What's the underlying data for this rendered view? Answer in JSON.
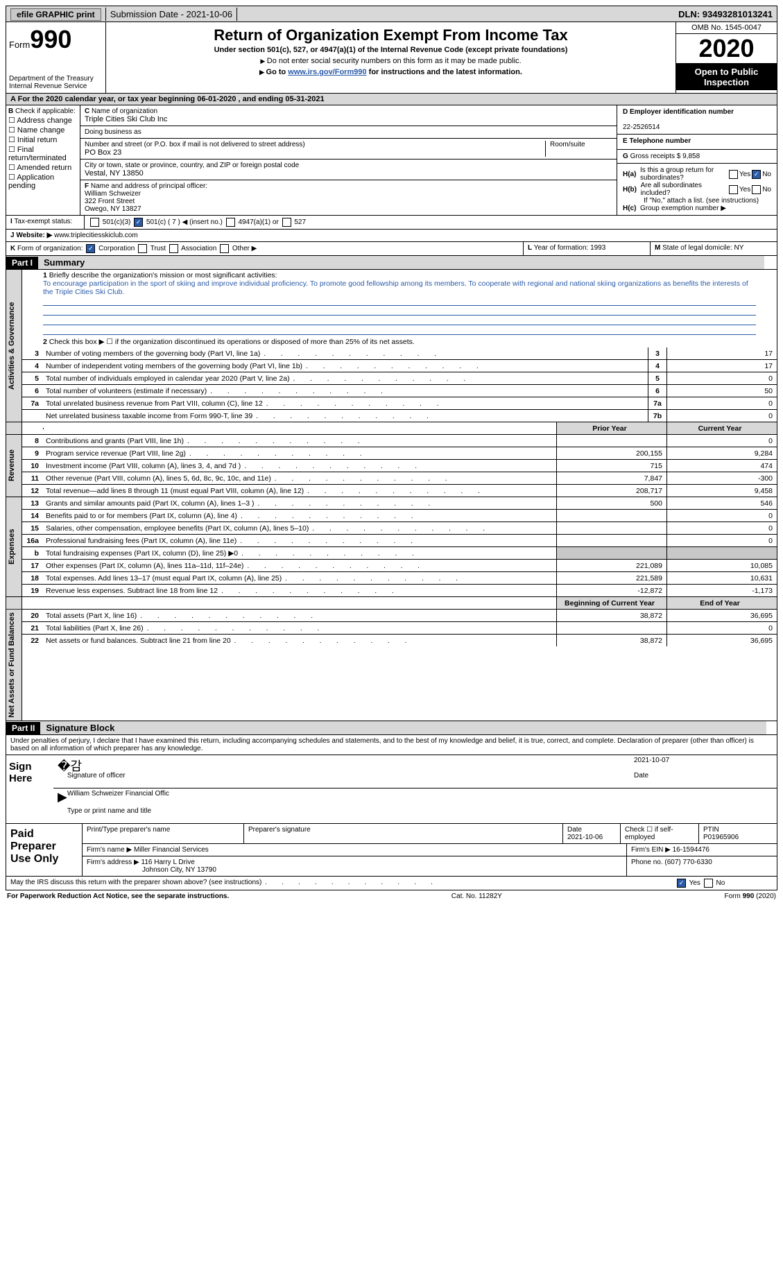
{
  "topbar": {
    "efile": "efile GRAPHIC print",
    "sub_label": "Submission Date - ",
    "sub_date": "2021-10-06",
    "dln_label": "DLN: ",
    "dln": "93493281013241"
  },
  "header": {
    "form_word": "Form",
    "form_num": "990",
    "dept1": "Department of the Treasury",
    "dept2": "Internal Revenue Service",
    "title": "Return of Organization Exempt From Income Tax",
    "sub1": "Under section 501(c), 527, or 4947(a)(1) of the Internal Revenue Code (except private foundations)",
    "sub2": "Do not enter social security numbers on this form as it may be made public.",
    "sub3a": "Go to ",
    "sub3_link": "www.irs.gov/Form990",
    "sub3b": " for instructions and the latest information.",
    "omb": "OMB No. 1545-0047",
    "year": "2020",
    "inspect": "Open to Public Inspection"
  },
  "period": "For the 2020 calendar year, or tax year beginning 06-01-2020     , and ending 05-31-2021",
  "boxA": {
    "label": "B",
    "text": "Check if applicable:",
    "opts": [
      "Address change",
      "Name change",
      "Initial return",
      "Final return/terminated",
      "Amended return",
      "Application pending"
    ]
  },
  "boxC": {
    "c_label": "C",
    "name_lbl": "Name of organization",
    "name": "Triple Cities Ski Club Inc",
    "dba_lbl": "Doing business as",
    "addr_lbl": "Number and street (or P.O. box if mail is not delivered to street address)",
    "room_lbl": "Room/suite",
    "addr": "PO Box 23",
    "city_lbl": "City or town, state or province, country, and ZIP or foreign postal code",
    "city": "Vestal, NY  13850",
    "f_lbl": "F",
    "officer_lbl": "Name and address of principal officer:",
    "officer": "William Schweizer",
    "officer_addr1": "322 Front Street",
    "officer_addr2": "Owego, NY  13827"
  },
  "boxD": {
    "d_lbl": "D Employer identification number",
    "ein": "22-2526514",
    "e_lbl": "E Telephone number",
    "g_lbl": "G",
    "gross_lbl": "Gross receipts $ ",
    "gross": "9,858",
    "ha_lbl": "H(a)",
    "ha_txt": "Is this a group return for subordinates?",
    "hb_lbl": "H(b)",
    "hb_txt": "Are all subordinates included?",
    "hb_note": "If \"No,\" attach a list. (see instructions)",
    "hc_lbl": "H(c)",
    "hc_txt": "Group exemption number ▶",
    "yes": "Yes",
    "no": "No"
  },
  "rowI": {
    "lbl": "I",
    "txt": "Tax-exempt status:",
    "o1": "501(c)(3)",
    "o2": "501(c) ( 7 ) ◀ (insert no.)",
    "o3": "4947(a)(1) or",
    "o4": "527"
  },
  "rowJ": {
    "lbl": "J",
    "txt": "Website: ▶",
    "val": "www.triplecitiesskiclub.com"
  },
  "rowK": {
    "lbl": "K",
    "txt": "Form of organization:",
    "o1": "Corporation",
    "o2": "Trust",
    "o3": "Association",
    "o4": "Other ▶",
    "l_lbl": "L",
    "l_txt": "Year of formation: ",
    "l_val": "1993",
    "m_lbl": "M",
    "m_txt": "State of legal domicile: ",
    "m_val": "NY"
  },
  "part1": {
    "hdr": "Part I",
    "title": "Summary",
    "l1_num": "1",
    "l1": "Briefly describe the organization's mission or most significant activities:",
    "mission": "To encourage participation in the sport of skiing and improve individual proficiency. To promote good fellowship among its members. To cooperate with regional and national skiing organizations as benefits the interests of the Triple Cities Ski Club.",
    "l2_num": "2",
    "l2": "Check this box ▶ ☐  if the organization discontinued its operations or disposed of more than 25% of its net assets."
  },
  "sections": {
    "gov": "Activities & Governance",
    "rev": "Revenue",
    "exp": "Expenses",
    "net": "Net Assets or Fund Balances"
  },
  "cols": {
    "prior": "Prior Year",
    "current": "Current Year",
    "boy": "Beginning of Current Year",
    "eoy": "End of Year"
  },
  "govlines": [
    {
      "n": "3",
      "d": "Number of voting members of the governing body (Part VI, line 1a)",
      "b": "3",
      "v": "17"
    },
    {
      "n": "4",
      "d": "Number of independent voting members of the governing body (Part VI, line 1b)",
      "b": "4",
      "v": "17"
    },
    {
      "n": "5",
      "d": "Total number of individuals employed in calendar year 2020 (Part V, line 2a)",
      "b": "5",
      "v": "0"
    },
    {
      "n": "6",
      "d": "Total number of volunteers (estimate if necessary)",
      "b": "6",
      "v": "50"
    },
    {
      "n": "7a",
      "d": "Total unrelated business revenue from Part VIII, column (C), line 12",
      "b": "7a",
      "v": "0"
    },
    {
      "n": "",
      "d": "Net unrelated business taxable income from Form 990-T, line 39",
      "b": "7b",
      "v": "0"
    }
  ],
  "revlines": [
    {
      "n": "8",
      "d": "Contributions and grants (Part VIII, line 1h)",
      "p": "",
      "c": "0"
    },
    {
      "n": "9",
      "d": "Program service revenue (Part VIII, line 2g)",
      "p": "200,155",
      "c": "9,284"
    },
    {
      "n": "10",
      "d": "Investment income (Part VIII, column (A), lines 3, 4, and 7d )",
      "p": "715",
      "c": "474"
    },
    {
      "n": "11",
      "d": "Other revenue (Part VIII, column (A), lines 5, 6d, 8c, 9c, 10c, and 11e)",
      "p": "7,847",
      "c": "-300"
    },
    {
      "n": "12",
      "d": "Total revenue—add lines 8 through 11 (must equal Part VIII, column (A), line 12)",
      "p": "208,717",
      "c": "9,458"
    }
  ],
  "explines": [
    {
      "n": "13",
      "d": "Grants and similar amounts paid (Part IX, column (A), lines 1–3 )",
      "p": "500",
      "c": "546"
    },
    {
      "n": "14",
      "d": "Benefits paid to or for members (Part IX, column (A), line 4)",
      "p": "",
      "c": "0"
    },
    {
      "n": "15",
      "d": "Salaries, other compensation, employee benefits (Part IX, column (A), lines 5–10)",
      "p": "",
      "c": "0"
    },
    {
      "n": "16a",
      "d": "Professional fundraising fees (Part IX, column (A), line 11e)",
      "p": "",
      "c": "0"
    },
    {
      "n": "b",
      "d": "Total fundraising expenses (Part IX, column (D), line 25) ▶0",
      "p": "grey",
      "c": "grey"
    },
    {
      "n": "17",
      "d": "Other expenses (Part IX, column (A), lines 11a–11d, 11f–24e)",
      "p": "221,089",
      "c": "10,085"
    },
    {
      "n": "18",
      "d": "Total expenses. Add lines 13–17 (must equal Part IX, column (A), line 25)",
      "p": "221,589",
      "c": "10,631"
    },
    {
      "n": "19",
      "d": "Revenue less expenses. Subtract line 18 from line 12",
      "p": "-12,872",
      "c": "-1,173"
    }
  ],
  "netlines": [
    {
      "n": "20",
      "d": "Total assets (Part X, line 16)",
      "p": "38,872",
      "c": "36,695"
    },
    {
      "n": "21",
      "d": "Total liabilities (Part X, line 26)",
      "p": "",
      "c": "0"
    },
    {
      "n": "22",
      "d": "Net assets or fund balances. Subtract line 21 from line 20",
      "p": "38,872",
      "c": "36,695"
    }
  ],
  "part2": {
    "hdr": "Part II",
    "title": "Signature Block"
  },
  "sig": {
    "decl": "Under penalties of perjury, I declare that I have examined this return, including accompanying schedules and statements, and to the best of my knowledge and belief, it is true, correct, and complete. Declaration of preparer (other than officer) is based on all information of which preparer has any knowledge.",
    "sign_here": "Sign Here",
    "sig_officer": "Signature of officer",
    "date_lbl": "Date",
    "date": "2021-10-07",
    "name": "William Schweizer Financial Offic",
    "name_lbl": "Type or print name and title"
  },
  "prep": {
    "label": "Paid Preparer Use Only",
    "h1": "Print/Type preparer's name",
    "h2": "Preparer's signature",
    "h3": "Date",
    "date": "2021-10-06",
    "h4": "Check ☐ if self-employed",
    "h5": "PTIN",
    "ptin": "P01965906",
    "firm_lbl": "Firm's name    ▶",
    "firm": "Miller Financial Services",
    "ein_lbl": "Firm's EIN ▶",
    "ein": "16-1594476",
    "addr_lbl": "Firm's address ▶",
    "addr1": "116 Harry L Drive",
    "addr2": "Johnson City, NY  13790",
    "phone_lbl": "Phone no. ",
    "phone": "(607) 770-6330"
  },
  "discuss": {
    "txt": "May the IRS discuss this return with the preparer shown above? (see instructions)",
    "yes": "Yes",
    "no": "No"
  },
  "footer": {
    "l": "For Paperwork Reduction Act Notice, see the separate instructions.",
    "m": "Cat. No. 11282Y",
    "r": "Form 990 (2020)"
  }
}
